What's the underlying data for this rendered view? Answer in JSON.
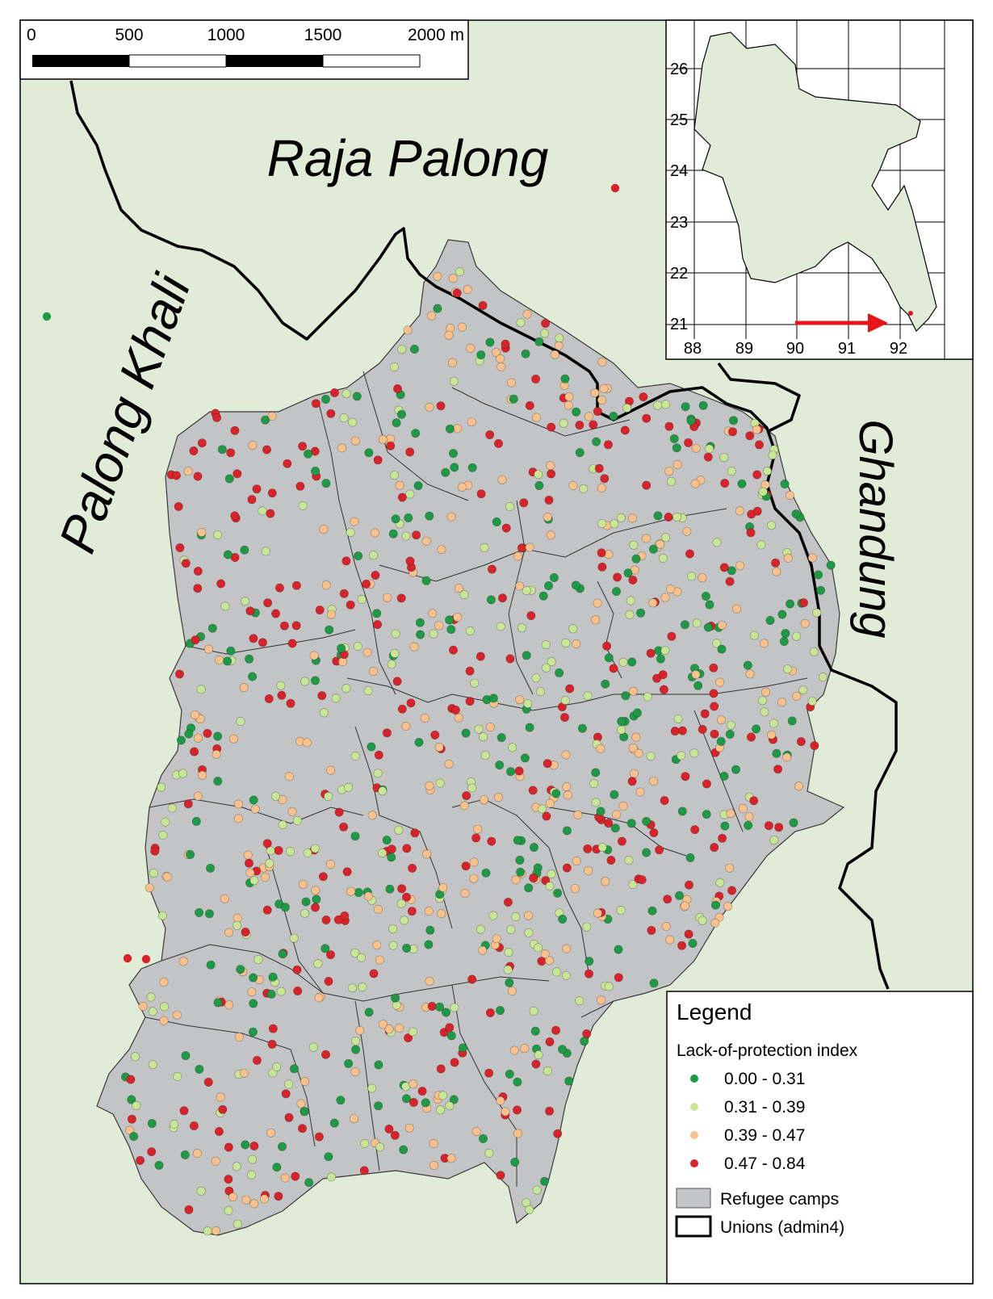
{
  "scale_bar": {
    "ticks": [
      "0",
      "500",
      "1000",
      "1500",
      "2000 m"
    ]
  },
  "place_labels": {
    "north": "Raja Palong",
    "west": "Palong Khali",
    "east": "Ghandung"
  },
  "inset": {
    "y_ticks": [
      "26",
      "25",
      "24",
      "23",
      "22",
      "21"
    ],
    "x_ticks": [
      "88",
      "89",
      "90",
      "91",
      "92"
    ],
    "arrow_color": "#e8141a"
  },
  "legend": {
    "title": "Legend",
    "subtitle": "Lack-of-protection index",
    "classes": [
      {
        "label": "0.00 - 0.31",
        "color": "#1e9a46"
      },
      {
        "label": "0.31 - 0.39",
        "color": "#c9e596"
      },
      {
        "label": "0.39 - 0.47",
        "color": "#f9c28d"
      },
      {
        "label": "0.47 - 0.84",
        "color": "#d8232a"
      }
    ],
    "camps_label": "Refugee camps",
    "unions_label": "Unions (admin4)",
    "camp_color": "#c3c4c5",
    "land_color": "#e0ecd7"
  }
}
